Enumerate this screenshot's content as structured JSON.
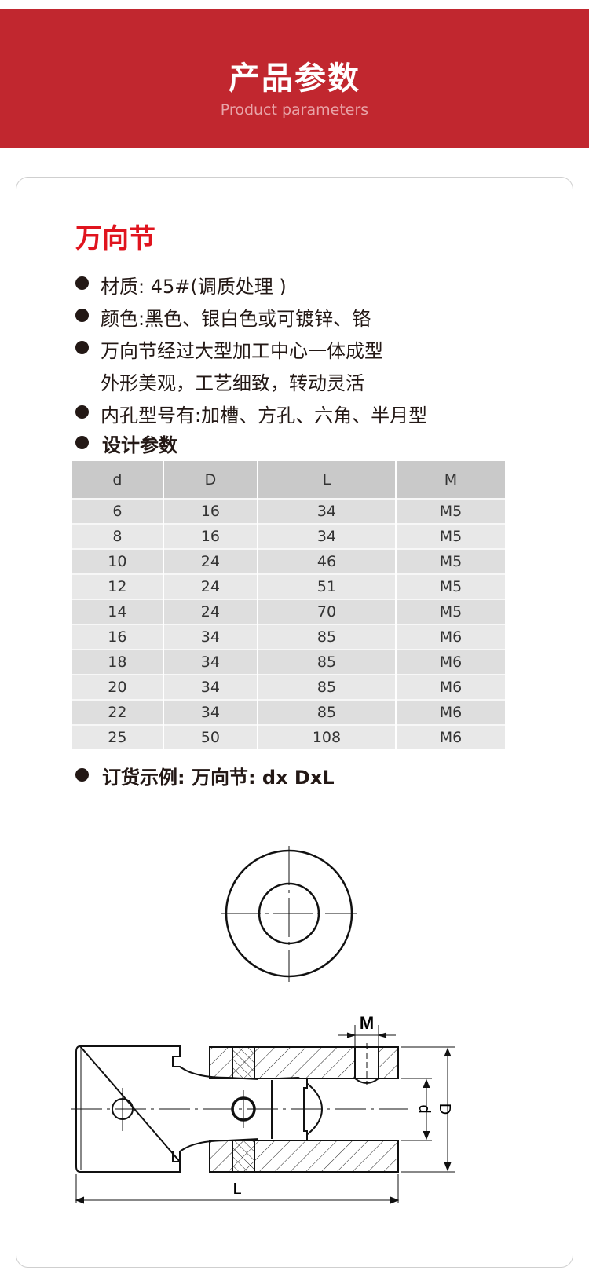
{
  "banner": {
    "title": "产品参数",
    "subtitle": "Product parameters"
  },
  "product": {
    "title": "万向节",
    "bullets": [
      "材质: 45#(调质处理 )",
      "颜色:黑色、银白色或可镀锌、铬",
      "万向节经过大型加工中心一体成型",
      "外形美观，工艺细致，转动灵活",
      "内孔型号有:加槽、方孔、六角、半月型"
    ],
    "design_heading": "设计参数",
    "order_example": "订货示例: 万向节: dx DxL"
  },
  "table": {
    "headers": [
      "d",
      "D",
      "L",
      "M"
    ],
    "rows": [
      [
        "6",
        "16",
        "34",
        "M5"
      ],
      [
        "8",
        "16",
        "34",
        "M5"
      ],
      [
        "10",
        "24",
        "46",
        "M5"
      ],
      [
        "12",
        "24",
        "51",
        "M5"
      ],
      [
        "14",
        "24",
        "70",
        "M5"
      ],
      [
        "16",
        "34",
        "85",
        "M6"
      ],
      [
        "18",
        "34",
        "85",
        "M6"
      ],
      [
        "20",
        "34",
        "85",
        "M6"
      ],
      [
        "22",
        "34",
        "85",
        "M6"
      ],
      [
        "25",
        "50",
        "108",
        "M6"
      ]
    ]
  },
  "drawing": {
    "label_M": "M",
    "label_d": "d",
    "label_D": "D",
    "label_L": "L"
  },
  "colors": {
    "banner": "#c1272f",
    "title": "#e0141e"
  }
}
